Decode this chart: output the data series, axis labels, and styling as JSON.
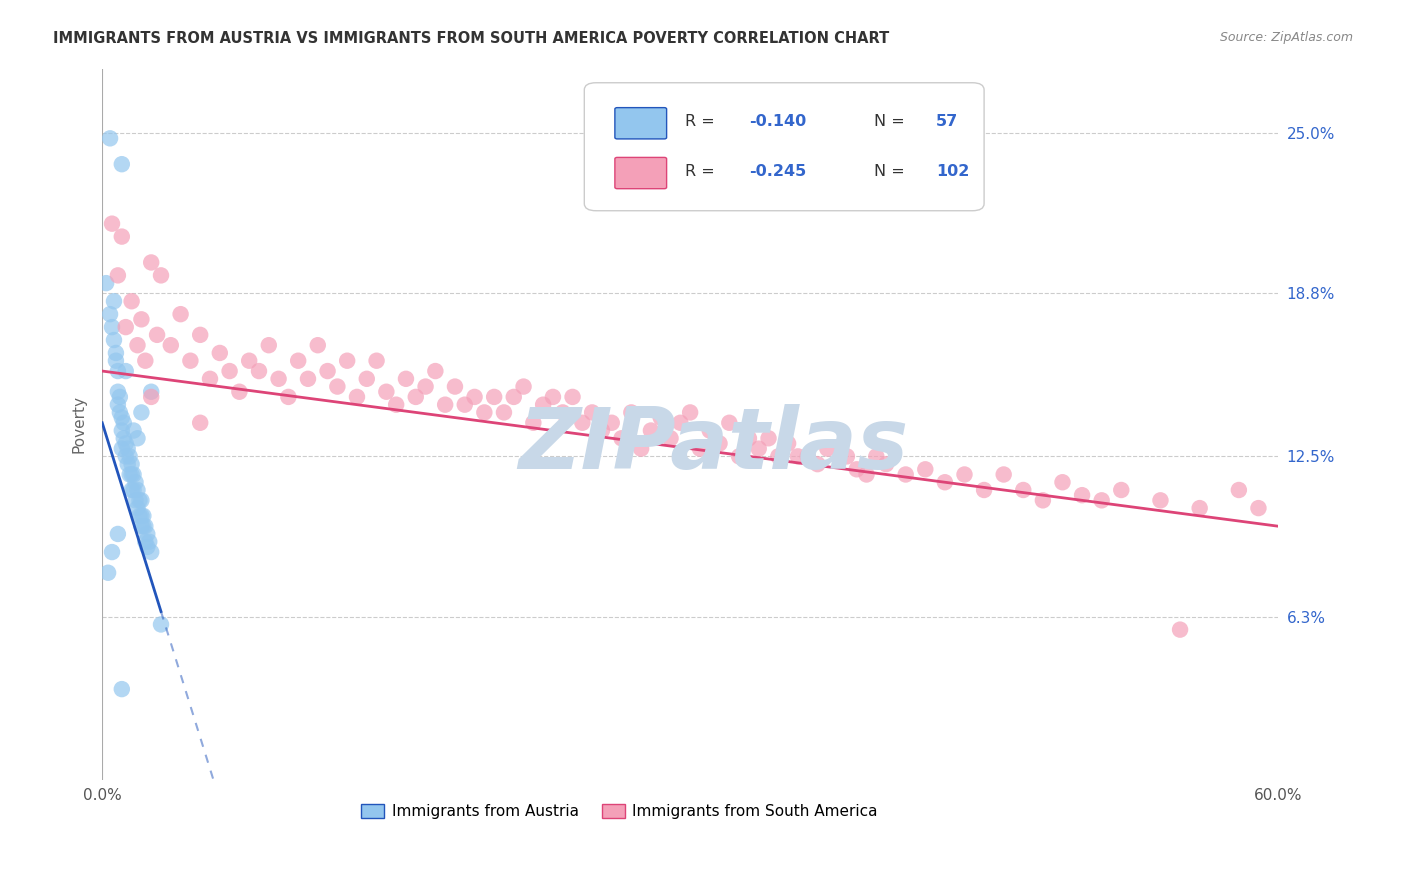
{
  "title": "IMMIGRANTS FROM AUSTRIA VS IMMIGRANTS FROM SOUTH AMERICA POVERTY CORRELATION CHART",
  "source": "Source: ZipAtlas.com",
  "ylabel": "Poverty",
  "ytick_labels": [
    "6.3%",
    "12.5%",
    "18.8%",
    "25.0%"
  ],
  "ytick_values": [
    0.063,
    0.125,
    0.188,
    0.25
  ],
  "xlim": [
    0.0,
    0.6
  ],
  "ylim": [
    0.0,
    0.275
  ],
  "austria_color": "#93C6EE",
  "south_america_color": "#F4A0B8",
  "austria_line_color": "#2255BB",
  "south_america_line_color": "#DD4477",
  "watermark_text": "ZIPatlas",
  "watermark_color": "#C8D8E8",
  "austria_scatter_x": [
    0.004,
    0.01,
    0.002,
    0.004,
    0.005,
    0.006,
    0.006,
    0.007,
    0.007,
    0.008,
    0.008,
    0.008,
    0.009,
    0.009,
    0.01,
    0.01,
    0.01,
    0.011,
    0.011,
    0.012,
    0.012,
    0.013,
    0.013,
    0.014,
    0.014,
    0.015,
    0.015,
    0.015,
    0.016,
    0.016,
    0.017,
    0.017,
    0.018,
    0.018,
    0.019,
    0.019,
    0.02,
    0.02,
    0.02,
    0.021,
    0.021,
    0.022,
    0.022,
    0.023,
    0.023,
    0.024,
    0.005,
    0.003,
    0.025,
    0.018,
    0.012,
    0.008,
    0.016,
    0.02,
    0.025,
    0.03,
    0.01
  ],
  "austria_scatter_y": [
    0.248,
    0.238,
    0.192,
    0.18,
    0.175,
    0.185,
    0.17,
    0.165,
    0.162,
    0.158,
    0.15,
    0.145,
    0.148,
    0.142,
    0.14,
    0.135,
    0.128,
    0.138,
    0.132,
    0.13,
    0.125,
    0.128,
    0.122,
    0.125,
    0.118,
    0.122,
    0.118,
    0.112,
    0.118,
    0.112,
    0.115,
    0.108,
    0.112,
    0.105,
    0.108,
    0.102,
    0.108,
    0.102,
    0.098,
    0.102,
    0.098,
    0.098,
    0.092,
    0.095,
    0.09,
    0.092,
    0.088,
    0.08,
    0.088,
    0.132,
    0.158,
    0.095,
    0.135,
    0.142,
    0.15,
    0.06,
    0.035
  ],
  "sa_scatter_x": [
    0.005,
    0.008,
    0.01,
    0.012,
    0.015,
    0.018,
    0.02,
    0.022,
    0.025,
    0.028,
    0.03,
    0.035,
    0.04,
    0.045,
    0.05,
    0.055,
    0.06,
    0.065,
    0.07,
    0.075,
    0.08,
    0.085,
    0.09,
    0.095,
    0.1,
    0.105,
    0.11,
    0.115,
    0.12,
    0.125,
    0.13,
    0.135,
    0.14,
    0.145,
    0.15,
    0.155,
    0.16,
    0.165,
    0.17,
    0.175,
    0.18,
    0.185,
    0.19,
    0.195,
    0.2,
    0.205,
    0.21,
    0.215,
    0.22,
    0.225,
    0.23,
    0.235,
    0.24,
    0.245,
    0.25,
    0.255,
    0.26,
    0.265,
    0.27,
    0.275,
    0.28,
    0.285,
    0.29,
    0.295,
    0.3,
    0.305,
    0.31,
    0.315,
    0.32,
    0.325,
    0.33,
    0.335,
    0.34,
    0.345,
    0.35,
    0.355,
    0.36,
    0.365,
    0.37,
    0.38,
    0.385,
    0.39,
    0.395,
    0.4,
    0.41,
    0.42,
    0.43,
    0.44,
    0.45,
    0.46,
    0.47,
    0.48,
    0.49,
    0.5,
    0.51,
    0.52,
    0.54,
    0.56,
    0.58,
    0.59,
    0.025,
    0.05,
    0.55
  ],
  "sa_scatter_y": [
    0.215,
    0.195,
    0.21,
    0.175,
    0.185,
    0.168,
    0.178,
    0.162,
    0.2,
    0.172,
    0.195,
    0.168,
    0.18,
    0.162,
    0.172,
    0.155,
    0.165,
    0.158,
    0.15,
    0.162,
    0.158,
    0.168,
    0.155,
    0.148,
    0.162,
    0.155,
    0.168,
    0.158,
    0.152,
    0.162,
    0.148,
    0.155,
    0.162,
    0.15,
    0.145,
    0.155,
    0.148,
    0.152,
    0.158,
    0.145,
    0.152,
    0.145,
    0.148,
    0.142,
    0.148,
    0.142,
    0.148,
    0.152,
    0.138,
    0.145,
    0.148,
    0.142,
    0.148,
    0.138,
    0.142,
    0.135,
    0.138,
    0.132,
    0.142,
    0.128,
    0.135,
    0.14,
    0.132,
    0.138,
    0.142,
    0.128,
    0.135,
    0.13,
    0.138,
    0.125,
    0.132,
    0.128,
    0.132,
    0.125,
    0.13,
    0.125,
    0.125,
    0.122,
    0.128,
    0.125,
    0.12,
    0.118,
    0.125,
    0.122,
    0.118,
    0.12,
    0.115,
    0.118,
    0.112,
    0.118,
    0.112,
    0.108,
    0.115,
    0.11,
    0.108,
    0.112,
    0.108,
    0.105,
    0.112,
    0.105,
    0.148,
    0.138,
    0.058
  ],
  "austria_line_x0": 0.0,
  "austria_line_y0": 0.138,
  "austria_line_x1": 0.03,
  "austria_line_y1": 0.065,
  "austria_line_xdash_start": 0.03,
  "austria_line_xdash_end": 0.43,
  "sa_line_x0": 0.0,
  "sa_line_y0": 0.158,
  "sa_line_x1": 0.6,
  "sa_line_y1": 0.098
}
